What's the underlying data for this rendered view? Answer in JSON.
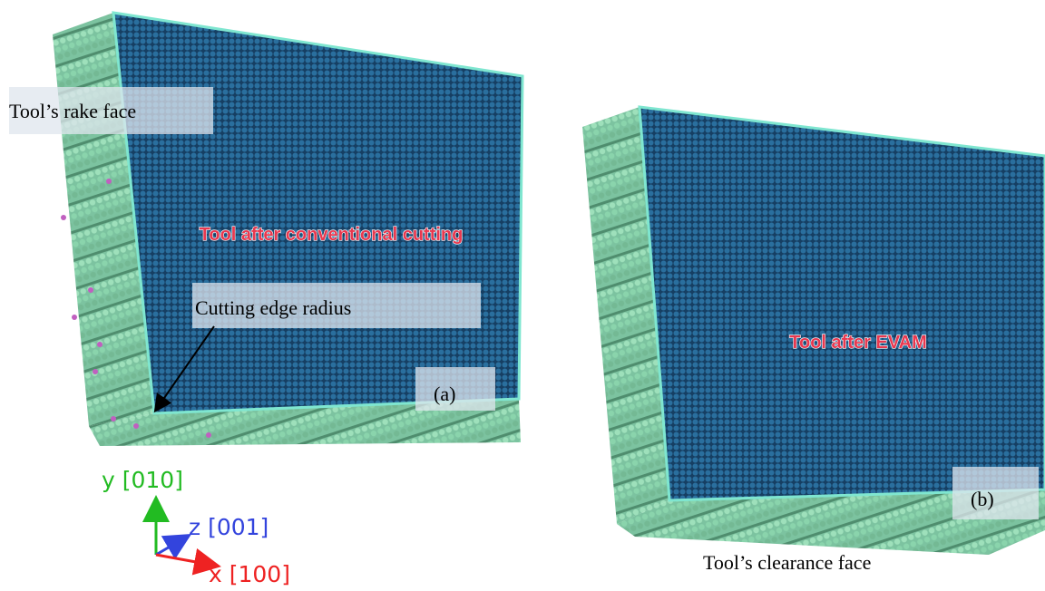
{
  "panel_a": {
    "label": "(a)",
    "title": "Tool after conventional cutting",
    "rake_face": "Tool’s rake face",
    "edge": "Cutting edge radius"
  },
  "panel_b": {
    "label": "(b)",
    "title": "Tool after EVAM",
    "clearance_face": "Tool’s clearance face"
  },
  "axes": {
    "y": "y [010]",
    "z": "z [001]",
    "x": "x [100]"
  }
}
